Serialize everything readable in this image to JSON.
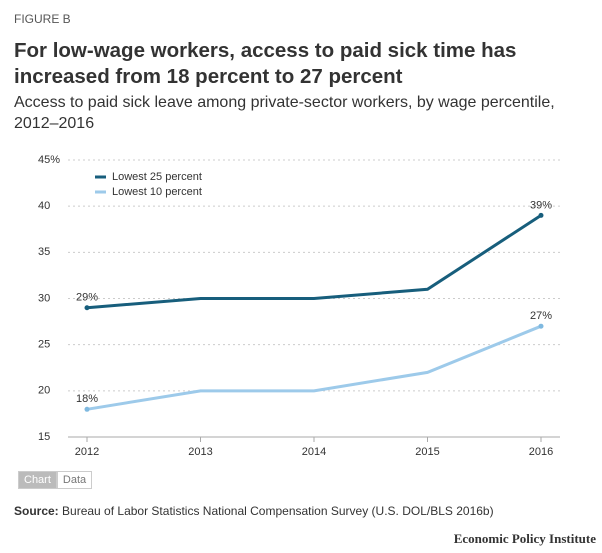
{
  "figure_label": "FIGURE B",
  "chart_data": {
    "type": "line",
    "title": "For low-wage workers, access to paid sick time has increased from 18 percent to 27 percent",
    "subtitle": "Access to paid sick leave among private-sector workers, by wage percentile, 2012–2016",
    "categories": [
      "2012",
      "2013",
      "2014",
      "2015",
      "2016"
    ],
    "series": [
      {
        "name": "Lowest 25 percent",
        "color": "#175e7c",
        "values": [
          29,
          30,
          30,
          31,
          39
        ],
        "value_labels": [
          "29%",
          null,
          null,
          null,
          "39%"
        ]
      },
      {
        "name": "Lowest 10 percent",
        "color": "#9dcaea",
        "values": [
          18,
          20,
          20,
          22,
          27
        ],
        "value_labels": [
          "18%",
          null,
          null,
          null,
          "27%"
        ]
      }
    ],
    "ylim": [
      15,
      45
    ],
    "yticks": [
      15,
      20,
      25,
      30,
      35,
      40,
      {
        "value": 45,
        "label": "45%"
      }
    ],
    "grid": true,
    "legend": "top-left"
  },
  "toggle": [
    "Chart",
    "Data"
  ],
  "source_label": "Source:",
  "source": "Bureau of Labor Statistics National Compensation Survey (U.S. DOL/BLS 2016b)",
  "publisher": "Economic Policy Institute"
}
